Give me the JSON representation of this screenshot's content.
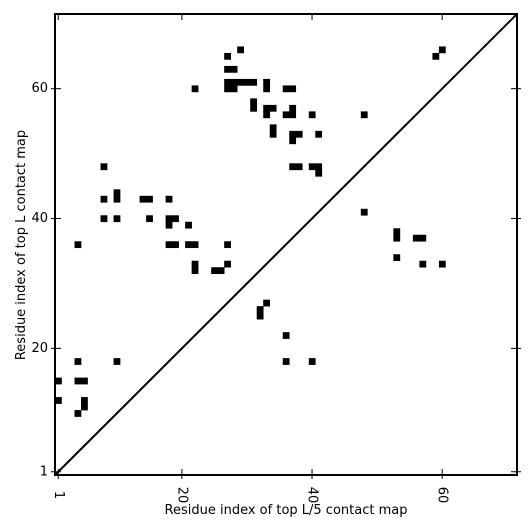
{
  "chart_data": {
    "type": "heatmap",
    "title": "",
    "xlabel": "Residue index of top L/5 contact map",
    "ylabel": "Residue index of top L contact map",
    "xlim": [
      0.5,
      71.5
    ],
    "ylim": [
      0.5,
      71.5
    ],
    "x_ticks": [
      1,
      20,
      40,
      60
    ],
    "y_ticks": [
      1,
      20,
      40,
      60
    ],
    "grid": false,
    "diagonal": true,
    "cell_color": "#000000",
    "upper_contacts": [
      [
        27,
        65
      ],
      [
        29,
        66
      ],
      [
        27,
        63
      ],
      [
        28,
        63
      ],
      [
        27,
        61
      ],
      [
        28,
        61
      ],
      [
        29,
        61
      ],
      [
        30,
        61
      ],
      [
        31,
        61
      ],
      [
        27,
        60
      ],
      [
        28,
        60
      ],
      [
        33,
        61
      ],
      [
        33,
        60
      ],
      [
        36,
        60
      ],
      [
        37,
        60
      ],
      [
        22,
        60
      ],
      [
        31,
        58
      ],
      [
        31,
        57
      ],
      [
        33,
        57
      ],
      [
        34,
        57
      ],
      [
        33,
        56
      ],
      [
        36,
        56
      ],
      [
        37,
        56
      ],
      [
        37,
        57
      ],
      [
        40,
        56
      ],
      [
        34,
        54
      ],
      [
        34,
        53
      ],
      [
        37,
        53
      ],
      [
        38,
        53
      ],
      [
        37,
        52
      ],
      [
        41,
        53
      ],
      [
        37,
        48
      ],
      [
        38,
        48
      ],
      [
        40,
        48
      ],
      [
        41,
        48
      ],
      [
        41,
        47
      ],
      [
        8,
        48
      ],
      [
        8,
        43
      ],
      [
        10,
        44
      ],
      [
        10,
        43
      ],
      [
        14,
        43
      ],
      [
        15,
        43
      ],
      [
        18,
        43
      ],
      [
        8,
        40
      ],
      [
        10,
        40
      ],
      [
        15,
        40
      ],
      [
        18,
        40
      ],
      [
        19,
        40
      ],
      [
        18,
        39
      ],
      [
        21,
        39
      ],
      [
        4,
        36
      ],
      [
        18,
        36
      ],
      [
        19,
        36
      ],
      [
        21,
        36
      ],
      [
        22,
        36
      ],
      [
        27,
        36
      ],
      [
        22,
        33
      ],
      [
        22,
        32
      ],
      [
        26,
        32
      ],
      [
        25,
        32
      ],
      [
        27,
        33
      ],
      [
        33,
        27
      ],
      [
        32,
        26
      ],
      [
        32,
        25
      ],
      [
        4,
        18
      ],
      [
        10,
        18
      ],
      [
        36,
        22
      ],
      [
        36,
        18
      ],
      [
        40,
        18
      ],
      [
        1,
        15
      ],
      [
        4,
        15
      ],
      [
        5,
        15
      ],
      [
        1,
        12
      ],
      [
        5,
        12
      ],
      [
        5,
        11
      ],
      [
        4,
        10
      ]
    ],
    "lower_contacts": [
      [
        59,
        65
      ],
      [
        60,
        66
      ],
      [
        48,
        56
      ],
      [
        48,
        41
      ],
      [
        53,
        38
      ],
      [
        53,
        37
      ],
      [
        56,
        37
      ],
      [
        57,
        37
      ],
      [
        53,
        34
      ],
      [
        57,
        33
      ],
      [
        60,
        33
      ]
    ]
  }
}
